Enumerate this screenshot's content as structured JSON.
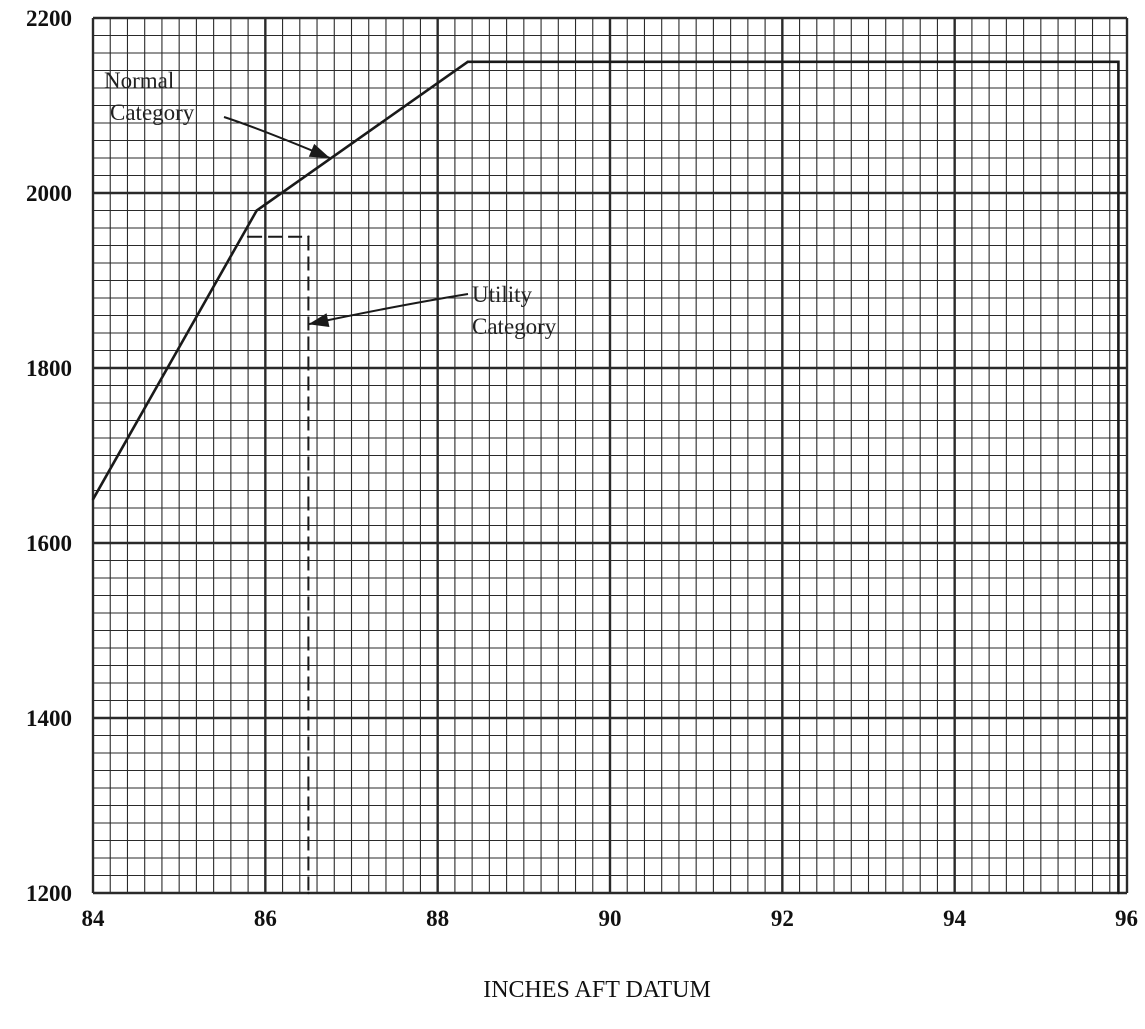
{
  "chart_data": {
    "type": "line",
    "title": "",
    "xlabel": "INCHES AFT DATUM",
    "ylabel": "",
    "xlim": [
      84,
      96
    ],
    "ylim": [
      1200,
      2200
    ],
    "x_ticks": [
      "84",
      "86",
      "88",
      "90",
      "92",
      "94",
      "96"
    ],
    "y_ticks": [
      "1200",
      "1400",
      "1600",
      "1800",
      "2000",
      "2200"
    ],
    "grid": true,
    "series": [
      {
        "name": "Normal Category",
        "style": "solid",
        "points": [
          {
            "x": 84.0,
            "y": 1650
          },
          {
            "x": 85.9,
            "y": 1980
          },
          {
            "x": 88.35,
            "y": 2150
          },
          {
            "x": 95.9,
            "y": 2150
          },
          {
            "x": 95.9,
            "y": 1200
          }
        ]
      },
      {
        "name": "Utility Category",
        "style": "dashed",
        "points": [
          {
            "x": 85.8,
            "y": 1950
          },
          {
            "x": 86.5,
            "y": 1950
          },
          {
            "x": 86.5,
            "y": 1200
          }
        ]
      }
    ],
    "annotations": [
      {
        "lines": [
          "Normal",
          "Category"
        ],
        "points_to": {
          "x": 86.75,
          "y": 2040
        }
      },
      {
        "lines": [
          "Utility",
          "Category"
        ],
        "points_to": {
          "x": 86.5,
          "y": 1850
        }
      }
    ],
    "colors": {
      "background": "#ffffff",
      "ink": "#1a1a1a",
      "grid": "#2a2a2a"
    }
  }
}
